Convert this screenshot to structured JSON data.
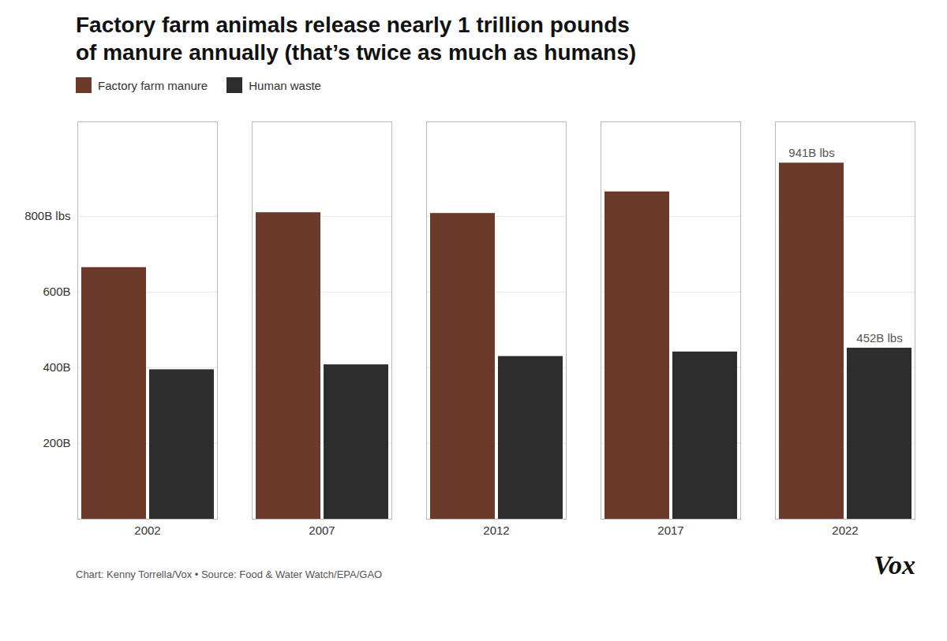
{
  "chart_data": {
    "type": "bar",
    "title": "Factory farm animals release nearly 1 trillion pounds\nof manure annually (that’s twice as much as humans)",
    "categories": [
      "2002",
      "2007",
      "2012",
      "2017",
      "2022"
    ],
    "series": [
      {
        "name": "Factory farm manure",
        "color": "#6B3A2A",
        "values": [
          665,
          810,
          808,
          865,
          941
        ]
      },
      {
        "name": "Human waste",
        "color": "#2D2D2D",
        "values": [
          395,
          408,
          430,
          442,
          452
        ]
      }
    ],
    "ylim": [
      0,
      1050
    ],
    "yticks": [
      {
        "value": 200,
        "label": "200B"
      },
      {
        "value": 400,
        "label": "400B"
      },
      {
        "value": 600,
        "label": "600B"
      },
      {
        "value": 800,
        "label": "800B lbs"
      }
    ],
    "grid": true,
    "legend": "top",
    "annotations": [
      {
        "series": "Factory farm manure",
        "category": "2022",
        "text": "941B lbs"
      },
      {
        "series": "Human waste",
        "category": "2022",
        "text": "452B lbs"
      }
    ],
    "caption": "Chart: Kenny Torrella/Vox • Source: Food & Water Watch/EPA/GAO",
    "logo": "Vox"
  }
}
